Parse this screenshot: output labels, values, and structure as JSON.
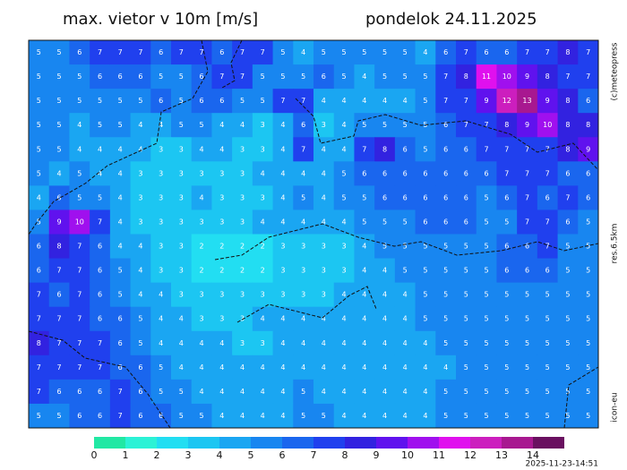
{
  "header": {
    "title": "max. vietor v 10m [m/s]",
    "date": "pondelok 24.11.2025"
  },
  "side": {
    "copyright": "(c)meteopress",
    "resolution": "res.6.5km",
    "model": "icon-eu"
  },
  "timestamp": "2025-11-23-14:51",
  "legend": {
    "ticks": [
      0,
      1,
      2,
      3,
      4,
      5,
      6,
      7,
      8,
      9,
      10,
      11,
      12,
      13,
      14
    ],
    "colors": [
      "#22e8a4",
      "#2cf2d6",
      "#22def2",
      "#1cc6f2",
      "#1aa6f2",
      "#1886f0",
      "#1a66ee",
      "#2040ee",
      "#3222e0",
      "#6012ee",
      "#a010ee",
      "#e010ee",
      "#cc1ebe",
      "#a81890",
      "#6a1060"
    ]
  },
  "grid": [
    [
      5,
      5,
      6,
      7,
      7,
      7,
      6,
      7,
      7,
      6,
      7,
      7,
      5,
      4,
      5,
      5,
      5,
      5,
      5,
      4,
      6,
      7,
      6,
      6,
      7,
      7,
      8,
      7
    ],
    [
      5,
      5,
      5,
      6,
      6,
      6,
      5,
      5,
      6,
      7,
      7,
      5,
      5,
      5,
      6,
      5,
      4,
      5,
      5,
      5,
      7,
      8,
      11,
      10,
      9,
      8,
      7,
      7
    ],
    [
      5,
      5,
      5,
      5,
      5,
      5,
      6,
      5,
      6,
      6,
      5,
      5,
      7,
      7,
      4,
      4,
      4,
      4,
      4,
      5,
      7,
      7,
      9,
      12,
      13,
      9,
      8,
      6
    ],
    [
      5,
      5,
      4,
      5,
      5,
      4,
      4,
      5,
      5,
      4,
      4,
      3,
      4,
      6,
      3,
      4,
      5,
      5,
      5,
      5,
      6,
      7,
      7,
      8,
      9,
      10,
      8,
      8
    ],
    [
      5,
      5,
      4,
      4,
      4,
      4,
      3,
      3,
      4,
      4,
      3,
      3,
      4,
      7,
      4,
      4,
      7,
      8,
      6,
      5,
      6,
      6,
      7,
      7,
      7,
      7,
      8,
      9
    ],
    [
      5,
      4,
      5,
      4,
      4,
      3,
      3,
      3,
      3,
      3,
      3,
      4,
      4,
      4,
      4,
      5,
      6,
      6,
      6,
      6,
      6,
      6,
      6,
      7,
      7,
      7,
      6,
      6
    ],
    [
      4,
      6,
      5,
      5,
      4,
      3,
      3,
      3,
      4,
      3,
      3,
      3,
      4,
      5,
      4,
      5,
      5,
      6,
      6,
      6,
      6,
      6,
      5,
      6,
      7,
      6,
      7,
      6
    ],
    [
      5,
      9,
      10,
      7,
      4,
      3,
      3,
      3,
      3,
      3,
      3,
      4,
      4,
      4,
      4,
      4,
      5,
      5,
      5,
      6,
      6,
      6,
      5,
      5,
      7,
      7,
      6,
      5
    ],
    [
      6,
      8,
      7,
      6,
      4,
      4,
      3,
      3,
      2,
      2,
      2,
      2,
      3,
      3,
      3,
      3,
      4,
      5,
      5,
      5,
      5,
      5,
      5,
      6,
      6,
      7,
      5,
      5
    ],
    [
      6,
      7,
      7,
      6,
      5,
      4,
      3,
      3,
      2,
      2,
      2,
      2,
      3,
      3,
      3,
      3,
      4,
      4,
      5,
      5,
      5,
      5,
      5,
      6,
      6,
      6,
      5,
      5
    ],
    [
      7,
      6,
      7,
      6,
      5,
      4,
      4,
      3,
      3,
      3,
      3,
      3,
      3,
      3,
      3,
      4,
      4,
      4,
      4,
      5,
      5,
      5,
      5,
      5,
      5,
      5,
      5,
      5
    ],
    [
      7,
      7,
      7,
      6,
      6,
      5,
      4,
      4,
      3,
      3,
      3,
      4,
      4,
      4,
      4,
      4,
      4,
      4,
      4,
      5,
      5,
      5,
      5,
      5,
      5,
      5,
      5,
      5
    ],
    [
      8,
      7,
      7,
      7,
      6,
      5,
      4,
      4,
      4,
      4,
      3,
      3,
      4,
      4,
      4,
      4,
      4,
      4,
      4,
      4,
      5,
      5,
      5,
      5,
      5,
      5,
      5,
      5
    ],
    [
      7,
      7,
      7,
      7,
      6,
      6,
      5,
      4,
      4,
      4,
      4,
      4,
      4,
      4,
      4,
      4,
      4,
      4,
      4,
      4,
      4,
      5,
      5,
      5,
      5,
      5,
      5,
      5
    ],
    [
      7,
      6,
      6,
      6,
      7,
      6,
      5,
      5,
      4,
      4,
      4,
      4,
      4,
      5,
      4,
      4,
      4,
      4,
      4,
      4,
      5,
      5,
      5,
      5,
      5,
      5,
      5,
      5
    ],
    [
      5,
      5,
      6,
      6,
      7,
      6,
      6,
      5,
      5,
      4,
      4,
      4,
      4,
      5,
      5,
      4,
      4,
      4,
      4,
      4,
      5,
      5,
      5,
      5,
      5,
      5,
      5,
      5
    ]
  ]
}
